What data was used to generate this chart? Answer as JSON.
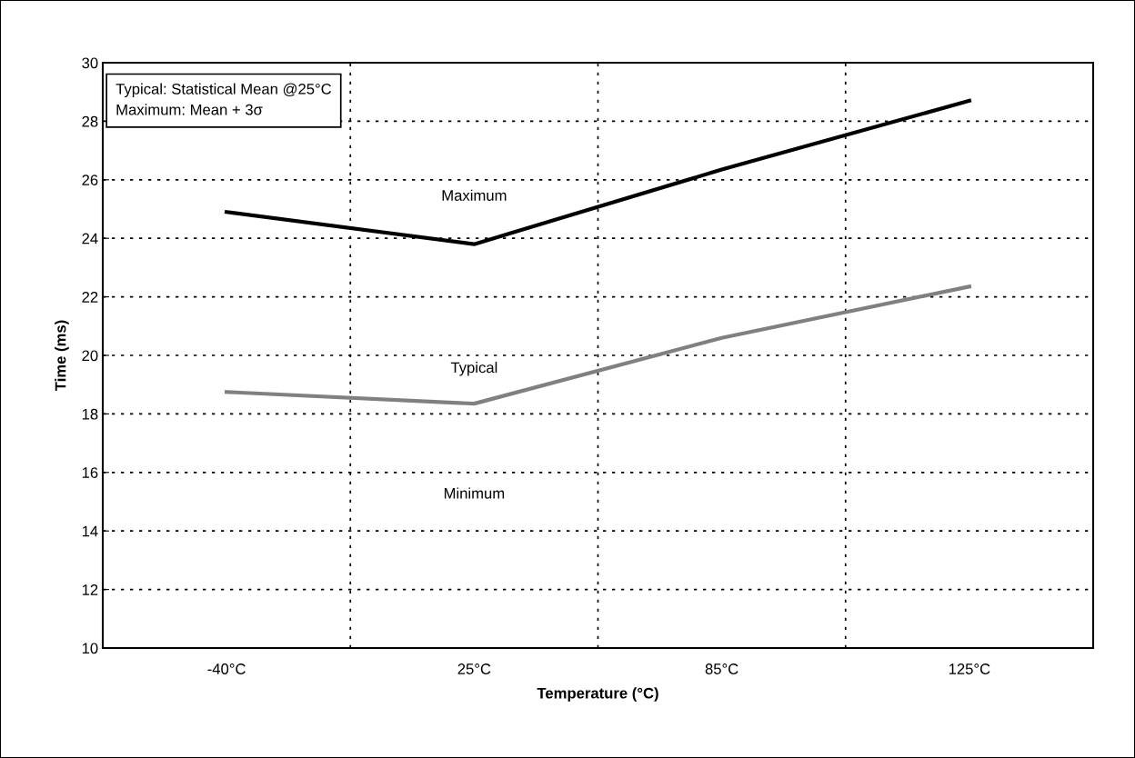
{
  "chart_data": {
    "type": "line",
    "xlabel": "Temperature (°C)",
    "ylabel": "Time (ms)",
    "categories": [
      "-40°C",
      "25°C",
      "85°C",
      "125°C"
    ],
    "series": [
      {
        "name": "Maximum",
        "color": "#000000",
        "values": [
          24.9,
          23.8,
          26.35,
          28.7
        ]
      },
      {
        "name": "Typical",
        "color": "#808080",
        "values": [
          18.75,
          18.35,
          20.6,
          22.35
        ]
      }
    ],
    "annotations": [
      "Typical: Statistical Mean @25°C\nMaximum: Mean + 3σ",
      "Minimum"
    ],
    "ylim": [
      10,
      30
    ],
    "yticks": [
      10,
      12,
      14,
      16,
      18,
      20,
      22,
      24,
      26,
      28,
      30
    ],
    "grid": true,
    "legend": false,
    "marker": "none",
    "line_style": "solid"
  }
}
